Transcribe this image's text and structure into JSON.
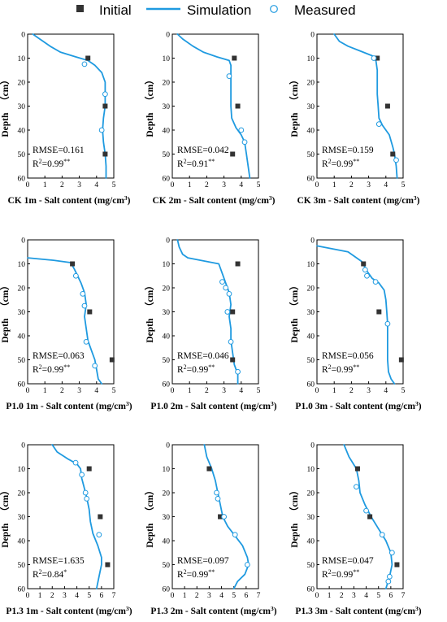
{
  "legend": {
    "initial": "Initial",
    "simulation": "Simulation",
    "measured": "Measured"
  },
  "colors": {
    "simulation": "#1f9ae0",
    "initial": "#333333",
    "measured": "#1f9ae0"
  },
  "chart_data": [
    {
      "type": "line",
      "xlabel": "CK 1m - Salt content (mg/cm",
      "xlabel_sup": "3",
      "xlabel_tail": ")",
      "ylabel": "Depth   （cm）",
      "xlim": [
        0,
        5
      ],
      "xticks": [
        0,
        1,
        2,
        3,
        4,
        5
      ],
      "ylim": [
        0,
        60
      ],
      "yticks": [
        0,
        10,
        20,
        30,
        40,
        50,
        60
      ],
      "rmse": "RMSE=0.161",
      "r2_base": "R",
      "r2_sup": "2",
      "r2_val": "=0.99",
      "r2_sig": "**",
      "simulation": [
        [
          0.3,
          0
        ],
        [
          0.7,
          2
        ],
        [
          1.3,
          5
        ],
        [
          1.9,
          7.5
        ],
        [
          2.8,
          9.5
        ],
        [
          3.5,
          11
        ],
        [
          3.9,
          13
        ],
        [
          4.3,
          16
        ],
        [
          4.5,
          20
        ],
        [
          4.5,
          25
        ],
        [
          4.5,
          30
        ],
        [
          4.4,
          35
        ],
        [
          4.35,
          40
        ],
        [
          4.4,
          45
        ],
        [
          4.5,
          50
        ],
        [
          4.55,
          55
        ],
        [
          4.55,
          60
        ]
      ],
      "initial": [
        [
          3.5,
          10
        ],
        [
          4.5,
          30
        ],
        [
          4.5,
          50
        ]
      ],
      "measured": [
        [
          3.3,
          12.5
        ],
        [
          4.5,
          25
        ],
        [
          4.3,
          40
        ]
      ]
    },
    {
      "type": "line",
      "xlabel": "CK 2m - Salt content (mg/cm",
      "xlabel_sup": "3",
      "xlabel_tail": ")",
      "ylabel": "Depth   （cm）",
      "xlim": [
        0,
        5
      ],
      "xticks": [
        0,
        1,
        2,
        3,
        4,
        5
      ],
      "ylim": [
        0,
        60
      ],
      "yticks": [
        0,
        10,
        20,
        30,
        40,
        50,
        60
      ],
      "rmse": "RMSE=0.042",
      "r2_base": "R",
      "r2_sup": "2",
      "r2_val": "=0.91",
      "r2_sig": "**",
      "simulation": [
        [
          0.3,
          0
        ],
        [
          0.6,
          2
        ],
        [
          1.2,
          5
        ],
        [
          1.8,
          7.5
        ],
        [
          2.6,
          9.5
        ],
        [
          3.3,
          11
        ],
        [
          3.4,
          13
        ],
        [
          3.4,
          17
        ],
        [
          3.4,
          20
        ],
        [
          3.4,
          25
        ],
        [
          3.4,
          30
        ],
        [
          3.45,
          35
        ],
        [
          3.7,
          39
        ],
        [
          4.0,
          42
        ],
        [
          4.2,
          45
        ],
        [
          4.3,
          50
        ],
        [
          4.4,
          55
        ],
        [
          4.5,
          60
        ]
      ],
      "initial": [
        [
          3.6,
          10
        ],
        [
          3.8,
          30
        ],
        [
          3.5,
          50
        ]
      ],
      "measured": [
        [
          3.3,
          17.5
        ],
        [
          4.0,
          40
        ],
        [
          4.2,
          45
        ]
      ]
    },
    {
      "type": "line",
      "xlabel": "CK 3m - Salt content (mg/cm",
      "xlabel_sup": "3",
      "xlabel_tail": ")",
      "ylabel": "Depth   （cm）",
      "xlim": [
        0,
        5
      ],
      "xticks": [
        0,
        1,
        2,
        3,
        4,
        5
      ],
      "ylim": [
        0,
        60
      ],
      "yticks": [
        0,
        10,
        20,
        30,
        40,
        50,
        60
      ],
      "rmse": "RMSE=0.159",
      "r2_base": "R",
      "r2_sup": "2",
      "r2_val": "=0.99",
      "r2_sig": "**",
      "simulation": [
        [
          1.0,
          0
        ],
        [
          1.3,
          3
        ],
        [
          1.8,
          5
        ],
        [
          2.5,
          7
        ],
        [
          3.2,
          9
        ],
        [
          3.4,
          10
        ],
        [
          3.5,
          15
        ],
        [
          3.5,
          20
        ],
        [
          3.5,
          25
        ],
        [
          3.55,
          30
        ],
        [
          3.6,
          35
        ],
        [
          3.8,
          38
        ],
        [
          4.2,
          42
        ],
        [
          4.4,
          47
        ],
        [
          4.5,
          50
        ],
        [
          4.6,
          55
        ],
        [
          4.65,
          60
        ]
      ],
      "initial": [
        [
          3.5,
          10
        ],
        [
          4.1,
          30
        ],
        [
          4.4,
          50
        ]
      ],
      "measured": [
        [
          3.3,
          10
        ],
        [
          3.6,
          37.5
        ],
        [
          4.6,
          52.5
        ]
      ]
    },
    {
      "type": "line",
      "xlabel": "P1.0 1m - Salt content (mg/cm",
      "xlabel_sup": "3",
      "xlabel_tail": ")",
      "ylabel": "Depth   （cm）",
      "xlim": [
        0,
        5
      ],
      "xticks": [
        0,
        1,
        2,
        3,
        4,
        5
      ],
      "ylim": [
        0,
        60
      ],
      "yticks": [
        0,
        10,
        20,
        30,
        40,
        50,
        60
      ],
      "rmse": "RMSE=0.063",
      "r2_base": "R",
      "r2_sup": "2",
      "r2_val": "=0.99",
      "r2_sig": "**",
      "simulation": [
        [
          0,
          7.5
        ],
        [
          1.5,
          8.5
        ],
        [
          2.5,
          9.5
        ],
        [
          2.7,
          12
        ],
        [
          2.9,
          15
        ],
        [
          3.1,
          18
        ],
        [
          3.3,
          22
        ],
        [
          3.4,
          27
        ],
        [
          3.3,
          32
        ],
        [
          3.4,
          37
        ],
        [
          3.5,
          42
        ],
        [
          3.7,
          46
        ],
        [
          3.9,
          50
        ],
        [
          4.0,
          54
        ],
        [
          4.1,
          58
        ],
        [
          4.3,
          60
        ]
      ],
      "initial": [
        [
          2.6,
          10
        ],
        [
          3.6,
          30
        ],
        [
          4.9,
          50
        ]
      ],
      "measured": [
        [
          2.8,
          15
        ],
        [
          3.2,
          22.5
        ],
        [
          3.3,
          27.5
        ],
        [
          3.4,
          42.5
        ],
        [
          3.9,
          52.5
        ]
      ]
    },
    {
      "type": "line",
      "xlabel": "P1.0 2m - Salt content (mg/cm",
      "xlabel_sup": "3",
      "xlabel_tail": ")",
      "ylabel": "Depth   （cm）",
      "xlim": [
        0,
        5
      ],
      "xticks": [
        0,
        1,
        2,
        3,
        4,
        5
      ],
      "ylim": [
        0,
        60
      ],
      "yticks": [
        0,
        10,
        20,
        30,
        40,
        50,
        60
      ],
      "rmse": "RMSE=0.046",
      "r2_base": "R",
      "r2_sup": "2",
      "r2_val": "=0.99",
      "r2_sig": "**",
      "simulation": [
        [
          0.3,
          0
        ],
        [
          0.4,
          3
        ],
        [
          0.6,
          6
        ],
        [
          0.9,
          7.5
        ],
        [
          2.0,
          9
        ],
        [
          2.7,
          10
        ],
        [
          2.9,
          14
        ],
        [
          3.1,
          18
        ],
        [
          3.3,
          22
        ],
        [
          3.4,
          27
        ],
        [
          3.3,
          32
        ],
        [
          3.4,
          37
        ],
        [
          3.4,
          42
        ],
        [
          3.5,
          47
        ],
        [
          3.6,
          52
        ],
        [
          3.8,
          56
        ],
        [
          3.8,
          60
        ]
      ],
      "initial": [
        [
          3.8,
          10
        ],
        [
          3.5,
          30
        ],
        [
          3.5,
          50
        ]
      ],
      "measured": [
        [
          2.9,
          17.5
        ],
        [
          3.1,
          20
        ],
        [
          3.3,
          22.5
        ],
        [
          3.2,
          30
        ],
        [
          3.4,
          42.5
        ],
        [
          3.8,
          55
        ]
      ]
    },
    {
      "type": "line",
      "xlabel": "P1.0 3m - Salt content (mg/cm",
      "xlabel_sup": "3",
      "xlabel_tail": ")",
      "ylabel": "Depth   （cm）",
      "xlim": [
        0,
        5
      ],
      "xticks": [
        0,
        1,
        2,
        3,
        4,
        5
      ],
      "ylim": [
        0,
        60
      ],
      "yticks": [
        0,
        10,
        20,
        30,
        40,
        50,
        60
      ],
      "rmse": "RMSE=0.056",
      "r2_base": "R",
      "r2_sup": "2",
      "r2_val": "=0.99",
      "r2_sig": "**",
      "simulation": [
        [
          0,
          2.5
        ],
        [
          1.8,
          5
        ],
        [
          2.6,
          9
        ],
        [
          2.9,
          13
        ],
        [
          3.2,
          16
        ],
        [
          3.6,
          18
        ],
        [
          3.9,
          21
        ],
        [
          4.0,
          25
        ],
        [
          4.05,
          30
        ],
        [
          4.1,
          35
        ],
        [
          4.1,
          40
        ],
        [
          4.1,
          45
        ],
        [
          4.1,
          50
        ],
        [
          4.15,
          55
        ],
        [
          4.3,
          58
        ],
        [
          4.5,
          60
        ]
      ],
      "initial": [
        [
          2.7,
          10
        ],
        [
          3.6,
          30
        ],
        [
          4.9,
          50
        ]
      ],
      "measured": [
        [
          2.8,
          12.5
        ],
        [
          2.9,
          15
        ],
        [
          3.4,
          17.5
        ],
        [
          4.1,
          35
        ]
      ]
    },
    {
      "type": "line",
      "xlabel": "P1.3 1m - Salt content (mg/cm",
      "xlabel_sup": "3",
      "xlabel_tail": ")",
      "ylabel": "Depth   （cm）",
      "xlim": [
        0,
        7
      ],
      "xticks": [
        0,
        1,
        2,
        3,
        4,
        5,
        6,
        7
      ],
      "ylim": [
        0,
        60
      ],
      "yticks": [
        0,
        10,
        20,
        30,
        40,
        50,
        60
      ],
      "rmse": "RMSE=1.635",
      "r2_base": "R",
      "r2_sup": "2",
      "r2_val": "=0.84",
      "r2_sig": "*",
      "simulation": [
        [
          2.0,
          0
        ],
        [
          2.4,
          3
        ],
        [
          3.3,
          6
        ],
        [
          4.0,
          8
        ],
        [
          4.3,
          10
        ],
        [
          4.4,
          14
        ],
        [
          4.6,
          18
        ],
        [
          4.8,
          22
        ],
        [
          5.0,
          27
        ],
        [
          5.1,
          32
        ],
        [
          5.3,
          37
        ],
        [
          5.7,
          42
        ],
        [
          6.0,
          47
        ],
        [
          6.0,
          50
        ],
        [
          5.8,
          55
        ],
        [
          5.6,
          60
        ]
      ],
      "initial": [
        [
          5.0,
          10
        ],
        [
          5.9,
          30
        ],
        [
          6.5,
          50
        ]
      ],
      "measured": [
        [
          3.9,
          7.5
        ],
        [
          4.4,
          12.5
        ],
        [
          4.7,
          20
        ],
        [
          4.8,
          22.5
        ],
        [
          5.8,
          37.5
        ]
      ]
    },
    {
      "type": "line",
      "xlabel": "P1.3 2m - Salt content (mg/cm",
      "xlabel_sup": "3",
      "xlabel_tail": ")",
      "ylabel": "Depth   （cm）",
      "xlim": [
        0,
        7
      ],
      "xticks": [
        0,
        1,
        2,
        3,
        4,
        5,
        6,
        7
      ],
      "ylim": [
        0,
        60
      ],
      "yticks": [
        0,
        10,
        20,
        30,
        40,
        50,
        60
      ],
      "rmse": "RMSE=0.097",
      "r2_base": "R",
      "r2_sup": "2",
      "r2_val": "=0.99",
      "r2_sig": "**",
      "simulation": [
        [
          2.6,
          0
        ],
        [
          2.8,
          5
        ],
        [
          3.2,
          10
        ],
        [
          3.5,
          15
        ],
        [
          3.7,
          20
        ],
        [
          3.9,
          25
        ],
        [
          4.1,
          30
        ],
        [
          4.5,
          34
        ],
        [
          5.1,
          38
        ],
        [
          5.7,
          42
        ],
        [
          6.1,
          47
        ],
        [
          6.2,
          50
        ],
        [
          5.9,
          54
        ],
        [
          5.3,
          57
        ],
        [
          5.0,
          60
        ]
      ],
      "initial": [
        [
          3.0,
          10
        ],
        [
          3.9,
          30
        ]
      ],
      "measured": [
        [
          3.6,
          20
        ],
        [
          3.7,
          22.5
        ],
        [
          4.2,
          30
        ],
        [
          5.1,
          37.5
        ],
        [
          6.1,
          50
        ]
      ]
    },
    {
      "type": "line",
      "xlabel": "P1.3 3m - Salt content (mg/cm",
      "xlabel_sup": "3",
      "xlabel_tail": ")",
      "ylabel": "Depth   （cm）",
      "xlim": [
        0,
        7
      ],
      "xticks": [
        0,
        1,
        2,
        3,
        4,
        5,
        6,
        7
      ],
      "ylim": [
        0,
        60
      ],
      "yticks": [
        0,
        10,
        20,
        30,
        40,
        50,
        60
      ],
      "rmse": "RMSE=0.047",
      "r2_base": "R",
      "r2_sup": "2",
      "r2_val": "=0.99",
      "r2_sig": "**",
      "simulation": [
        [
          2.2,
          0
        ],
        [
          2.6,
          5
        ],
        [
          3.2,
          10
        ],
        [
          3.4,
          15
        ],
        [
          3.5,
          20
        ],
        [
          3.9,
          25
        ],
        [
          4.4,
          30
        ],
        [
          5.0,
          35
        ],
        [
          5.6,
          40
        ],
        [
          6.0,
          45
        ],
        [
          6.1,
          50
        ],
        [
          5.9,
          55
        ],
        [
          5.6,
          60
        ]
      ],
      "initial": [
        [
          3.3,
          10
        ],
        [
          4.3,
          30
        ],
        [
          6.5,
          50
        ]
      ],
      "measured": [
        [
          3.2,
          17.5
        ],
        [
          4.0,
          27.5
        ],
        [
          5.3,
          37.5
        ],
        [
          6.1,
          45
        ],
        [
          5.9,
          55
        ],
        [
          5.8,
          57
        ]
      ]
    }
  ]
}
